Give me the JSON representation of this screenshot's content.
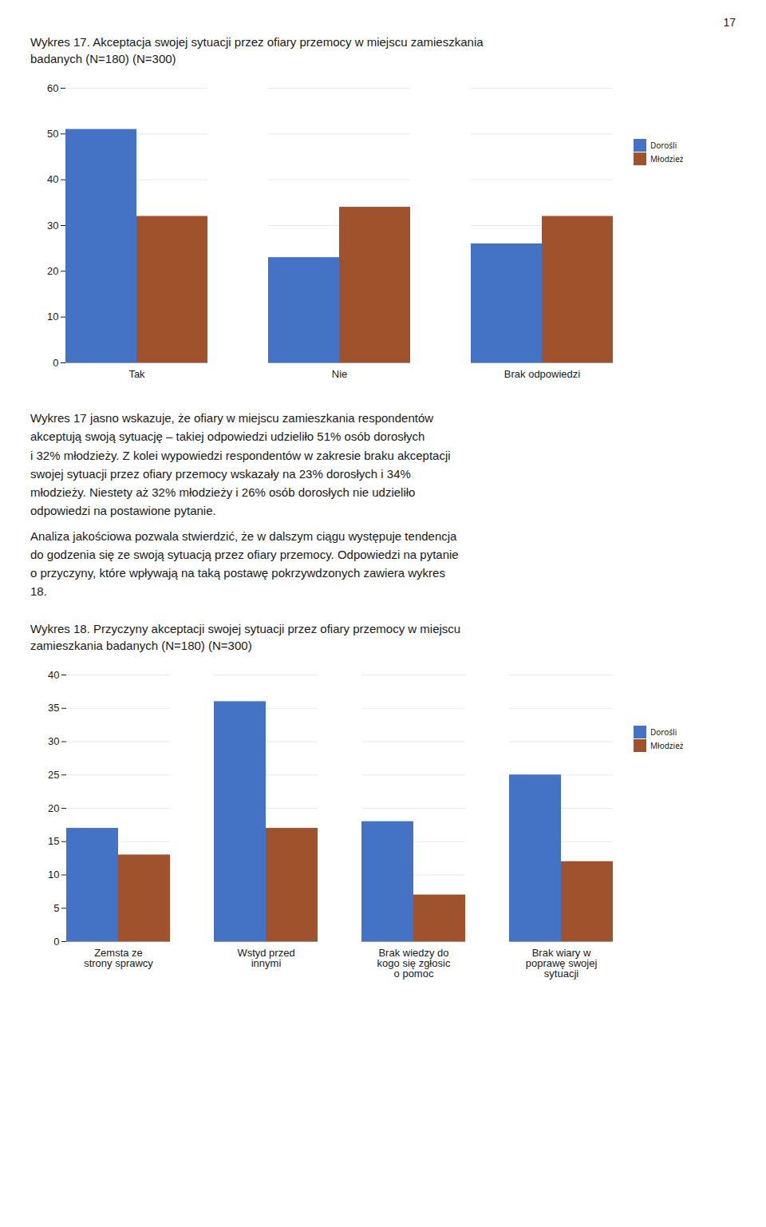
{
  "page_number": "17",
  "chart_data": [
    {
      "type": "bar",
      "title": "Wykres 17. Akceptacja swojej sytuacji przez ofiary przemocy w miejscu zamieszkania\nbadanych (N=180) (N=300)",
      "categories": [
        "Tak",
        "Nie",
        "Brak odpowiedzi"
      ],
      "series": [
        {
          "name": "Dorośli",
          "color": "#4472C4",
          "values": [
            51,
            23,
            26
          ]
        },
        {
          "name": "Młodzież",
          "color": "#A0522D",
          "values": [
            32,
            34,
            32
          ]
        }
      ],
      "ylim": [
        0,
        60
      ],
      "yticks": [
        0,
        10,
        20,
        30,
        40,
        50,
        60
      ],
      "grid": true,
      "legend": "right"
    },
    {
      "type": "bar",
      "title": "Wykres 18. Przyczyny akceptacji swojej sytuacji przez ofiary przemocy w miejscu\nzamieszkania badanych (N=180) (N=300)",
      "categories": [
        "Zemsta ze\nstrony sprawcy",
        "Wstyd przed\ninnymi",
        "Brak wiedzy do\nkogo się zgłosic\no pomoc",
        "Brak wiary w\npoprawę swojej\nsytuacji"
      ],
      "series": [
        {
          "name": "Dorośli",
          "color": "#4472C4",
          "values": [
            17,
            36,
            18,
            25
          ]
        },
        {
          "name": "Młodzież",
          "color": "#A0522D",
          "values": [
            13,
            17,
            7,
            12
          ]
        }
      ],
      "ylim": [
        0,
        40
      ],
      "yticks": [
        0,
        5,
        10,
        15,
        20,
        25,
        30,
        35,
        40
      ],
      "grid": true,
      "legend": "right"
    }
  ],
  "paragraph": [
    "Wykres 17 jasno wskazuje, że ofiary w miejscu zamieszkania respondentów",
    "akceptują swoją sytuację – takiej odpowiedzi udzieliło 51% osób dorosłych",
    "i 32% młodzieży. Z kolei wypowiedzi respondentów w zakresie braku akceptacji",
    "swojej sytuacji przez ofiary przemocy wskazały na 23% dorosłych i 34%",
    "młodzieży. Niestety aż 32% młodzieży i 26% osób dorosłych nie udzieliło",
    "odpowiedzi na postawione pytanie.",
    "Analiza jakościowa pozwala stwierdzić, że w dalszym ciągu występuje tendencja",
    "do godzenia się ze swoją sytuacją przez ofiary przemocy. Odpowiedzi na pytanie",
    "o przyczyny, które wpływają na taką postawę pokrzywdzonych zawiera wykres",
    "18."
  ]
}
